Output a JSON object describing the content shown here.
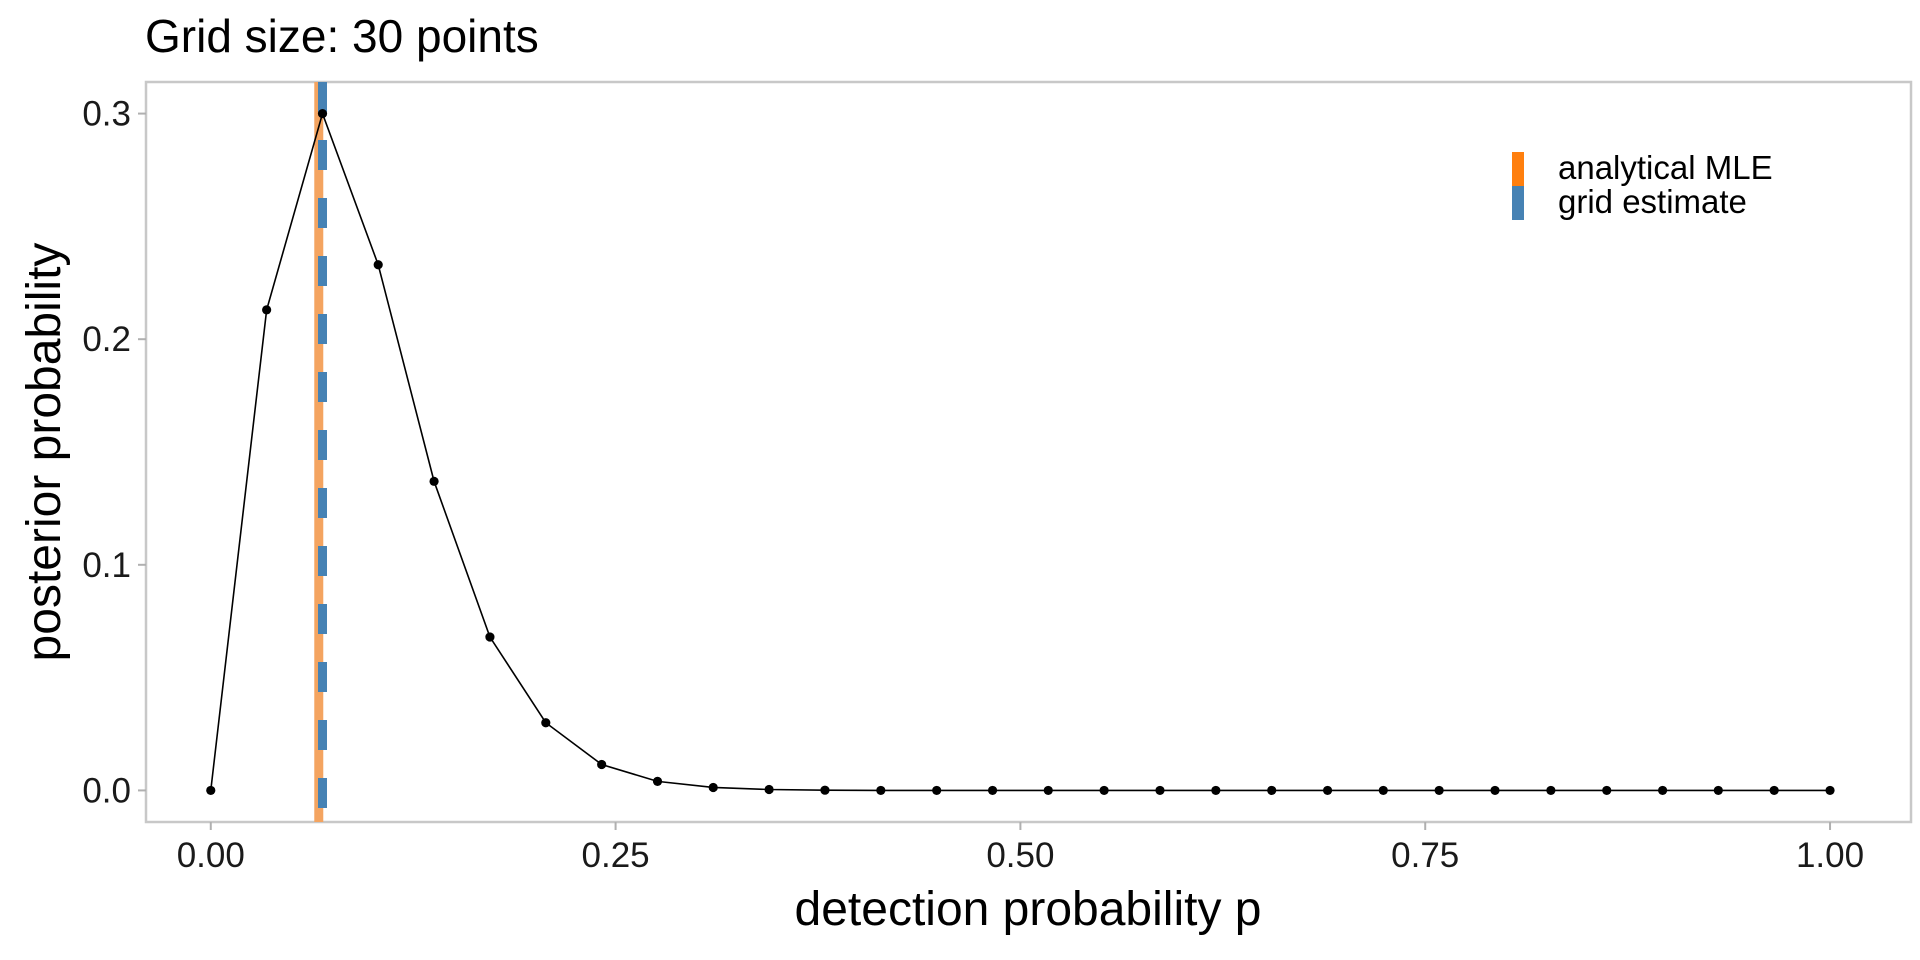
{
  "chart_data": {
    "type": "line",
    "title": "Grid size: 30 points",
    "xlabel": "detection probability p",
    "ylabel": "posterior probability",
    "xlim": [
      -0.04,
      1.05
    ],
    "ylim": [
      -0.014,
      0.314
    ],
    "x_ticks": [
      0,
      0.25,
      0.5,
      0.75,
      1
    ],
    "x_tick_labels": [
      "0.00",
      "0.25",
      "0.50",
      "0.75",
      "1.00"
    ],
    "y_ticks": [
      0,
      0.1,
      0.2,
      0.3
    ],
    "y_tick_labels": [
      "0.0",
      "0.1",
      "0.2",
      "0.3"
    ],
    "grid": false,
    "series": [
      {
        "color": "#000000",
        "x": [
          0,
          0.0345,
          0.069,
          0.1034,
          0.1379,
          0.1724,
          0.2069,
          0.2414,
          0.2759,
          0.3103,
          0.3448,
          0.3793,
          0.4138,
          0.4483,
          0.4828,
          0.5172,
          0.5517,
          0.5862,
          0.6207,
          0.6552,
          0.6897,
          0.7241,
          0.7586,
          0.7931,
          0.8276,
          0.8621,
          0.8966,
          0.931,
          0.9655,
          1
        ],
        "y": [
          0,
          0.213,
          0.3,
          0.233,
          0.137,
          0.068,
          0.03,
          0.0115,
          0.004,
          0.0013,
          0.0004,
          0.0001,
          0,
          0,
          0,
          0,
          0,
          0,
          0,
          0,
          0,
          0,
          0,
          0,
          0,
          0,
          0,
          0,
          0,
          0
        ]
      }
    ],
    "vlines": [
      {
        "name": "analytical MLE",
        "x": 0.0667,
        "color": "#f4a460",
        "legend_color": "#ff7f0e",
        "style": "solid"
      },
      {
        "name": "grid estimate",
        "x": 0.069,
        "color": "#4682b4",
        "style": "dashed"
      }
    ],
    "legend": {
      "position": "top-right",
      "entries": [
        "analytical MLE",
        "grid estimate"
      ]
    }
  }
}
